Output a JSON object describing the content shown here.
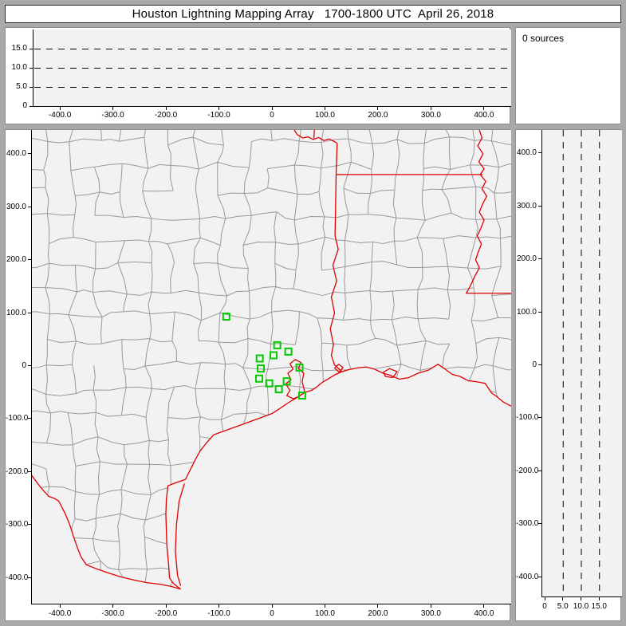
{
  "window": {
    "title": "Houston Lightning Mapping Array   1700-1800 UTC  April 26, 2018"
  },
  "colors": {
    "frame": "#a9a9a9",
    "panel_bg": "#ffffff",
    "plot_bg": "#f2f2f2",
    "axis": "#000000",
    "county_line": "#999999",
    "state_line": "#dd0000",
    "station": "#00cc00",
    "text": "#000000"
  },
  "sources_panel": {
    "text": "0 sources"
  },
  "alt_ew_panel": {
    "y_ticks": [
      {
        "label": "15.0",
        "km": 15
      },
      {
        "label": "10.0",
        "km": 10
      },
      {
        "label": "5.0",
        "km": 5
      },
      {
        "label": "0",
        "km": 0
      }
    ],
    "x_ticks": [
      {
        "label": "-400.0",
        "km": -400
      },
      {
        "label": "-300.0",
        "km": -300
      },
      {
        "label": "-200.0",
        "km": -200
      },
      {
        "label": "-100.0",
        "km": -100
      },
      {
        "label": "0",
        "km": 0
      },
      {
        "label": "100.0",
        "km": 100
      },
      {
        "label": "200.0",
        "km": 200
      },
      {
        "label": "300.0",
        "km": 300
      },
      {
        "label": "400.0",
        "km": 400
      }
    ],
    "grid_km": [
      5,
      10,
      15
    ]
  },
  "map_panel": {
    "y_ticks": [
      {
        "label": "400.0",
        "km": 400
      },
      {
        "label": "300.0",
        "km": 300
      },
      {
        "label": "200.0",
        "km": 200
      },
      {
        "label": "100.0",
        "km": 100
      },
      {
        "label": "0",
        "km": 0
      },
      {
        "label": "-100.0",
        "km": -100
      },
      {
        "label": "-200.0",
        "km": -200
      },
      {
        "label": "-300.0",
        "km": -300
      },
      {
        "label": "-400.0",
        "km": -400
      }
    ],
    "x_ticks": [
      {
        "label": "-400.0",
        "km": -400
      },
      {
        "label": "-300.0",
        "km": -300
      },
      {
        "label": "-200.0",
        "km": -200
      },
      {
        "label": "-100.0",
        "km": -100
      },
      {
        "label": "0",
        "km": 0
      },
      {
        "label": "100.0",
        "km": 100
      },
      {
        "label": "200.0",
        "km": 200
      },
      {
        "label": "300.0",
        "km": 300
      },
      {
        "label": "400.0",
        "km": 400
      }
    ],
    "stations_km": [
      [
        -86,
        93
      ],
      [
        10,
        39
      ],
      [
        3,
        20
      ],
      [
        -23,
        14
      ],
      [
        31,
        27
      ],
      [
        -21,
        -5
      ],
      [
        52,
        -3
      ],
      [
        -24,
        -24
      ],
      [
        -5,
        -33
      ],
      [
        28,
        -29
      ],
      [
        13,
        -44
      ],
      [
        57,
        -56
      ]
    ]
  },
  "alt_ns_panel": {
    "y_ticks": [
      {
        "label": "400.0",
        "km": 400
      },
      {
        "label": "300.0",
        "km": 300
      },
      {
        "label": "200.0",
        "km": 200
      },
      {
        "label": "100.0",
        "km": 100
      },
      {
        "label": "0",
        "km": 0
      },
      {
        "label": "-100.0",
        "km": -100
      },
      {
        "label": "-200.0",
        "km": -200
      },
      {
        "label": "-300.0",
        "km": -300
      },
      {
        "label": "-400.0",
        "km": -400
      }
    ],
    "x_ticks": [
      {
        "label": "0",
        "km": 0
      },
      {
        "label": "5.0",
        "km": 5
      },
      {
        "label": "10.0",
        "km": 10
      },
      {
        "label": "15.0",
        "km": 15
      }
    ],
    "grid_km": [
      5,
      10,
      15
    ]
  },
  "chart_data": [
    {
      "type": "scatter",
      "title": "Altitude (km) vs east-west distance (km)",
      "xlim": [
        -450,
        450
      ],
      "ylim": [
        0,
        20
      ],
      "x_tick_labels": [
        "-400.0",
        "-300.0",
        "-200.0",
        "-100.0",
        "0",
        "100.0",
        "200.0",
        "300.0",
        "400.0"
      ],
      "y_tick_labels": [
        "0",
        "5.0",
        "10.0",
        "15.0"
      ],
      "grid": "dashed horizontal lines at 5, 10, 15 km",
      "points": [],
      "annotation": "no lightning sources plotted (0 sources)"
    },
    {
      "type": "scatter",
      "title": "Plan view map centered on Houston (km east vs km north)",
      "xlim": [
        -454,
        451
      ],
      "ylim": [
        -450,
        445
      ],
      "x_tick_labels": [
        "-400.0",
        "-300.0",
        "-200.0",
        "-100.0",
        "0",
        "100.0",
        "200.0",
        "300.0",
        "400.0"
      ],
      "y_tick_labels": [
        "400.0",
        "300.0",
        "200.0",
        "100.0",
        "0",
        "-100.0",
        "-200.0",
        "-300.0",
        "-400.0"
      ],
      "points": [],
      "stations": [
        [
          -86,
          93
        ],
        [
          10,
          39
        ],
        [
          3,
          20
        ],
        [
          -23,
          14
        ],
        [
          31,
          27
        ],
        [
          -21,
          -5
        ],
        [
          52,
          -3
        ],
        [
          -24,
          -24
        ],
        [
          -5,
          -33
        ],
        [
          28,
          -29
        ],
        [
          13,
          -44
        ],
        [
          57,
          -56
        ]
      ],
      "map_layers": [
        "county boundaries (gray)",
        "state borders, Gulf coast, Rio Grande, Sabine, Red, Mississippi rivers (red)",
        "LMA station markers (green squares)"
      ]
    },
    {
      "type": "scatter",
      "title": "North-south distance (km) vs altitude (km)",
      "xlim": [
        0,
        21
      ],
      "ylim": [
        -440,
        446
      ],
      "x_tick_labels": [
        "0",
        "5.0",
        "10.0",
        "15.0"
      ],
      "y_tick_labels": [
        "400.0",
        "300.0",
        "200.0",
        "100.0",
        "0",
        "-100.0",
        "-200.0",
        "-300.0",
        "-400.0"
      ],
      "grid": "dashed vertical lines at 5, 10, 15 km",
      "points": [],
      "annotation": "no lightning sources plotted (0 sources)"
    }
  ]
}
